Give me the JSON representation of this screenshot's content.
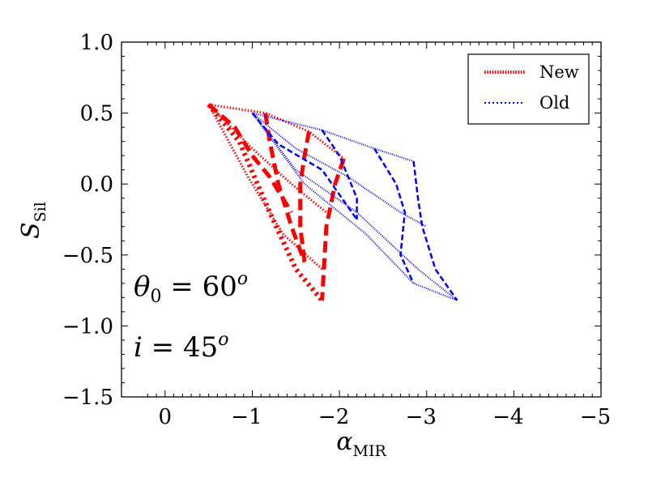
{
  "chart_data": {
    "type": "line",
    "xlabel": {
      "main": "α",
      "sub": "MIR"
    },
    "ylabel": {
      "main": "S",
      "sub": "Sil"
    },
    "xlim": [
      0.5,
      -5
    ],
    "ylim": [
      -1.5,
      1.0
    ],
    "x_ticks": [
      0,
      -1,
      -2,
      -3,
      -4,
      -5
    ],
    "x_tick_labels": [
      "0",
      "−1",
      "−2",
      "−3",
      "−4",
      "−5"
    ],
    "y_ticks": [
      1.0,
      0.5,
      0.0,
      -0.5,
      -1.0,
      -1.5
    ],
    "y_tick_labels": [
      "1.0",
      "0.5",
      "0.0",
      "−0.5",
      "−1.0",
      "−1.5"
    ],
    "legend_position": "top-right",
    "legend": [
      {
        "label": "New",
        "color": "#ff0000",
        "style": "dotted"
      },
      {
        "label": "Old",
        "color": "#0000ff",
        "style": "dotted"
      }
    ],
    "annotations": [
      {
        "lhs": "θ",
        "sub": "0",
        "op": " = 60",
        "sup": "o"
      },
      {
        "lhs": "i",
        "sub": "",
        "op": " = 45",
        "sup": "o"
      }
    ],
    "series": [
      {
        "group": "New",
        "color": "#ff0000",
        "style": "dotted",
        "width": 3,
        "points": [
          [
            -0.5,
            0.56
          ],
          [
            -1.15,
            0.5
          ],
          [
            -1.65,
            0.37
          ],
          [
            -2.05,
            0.18
          ]
        ]
      },
      {
        "group": "New",
        "color": "#ff0000",
        "style": "dotted",
        "width": 3,
        "points": [
          [
            -0.5,
            0.56
          ],
          [
            -1.0,
            0.25
          ],
          [
            -1.45,
            0.0
          ],
          [
            -1.85,
            -0.2
          ]
        ]
      },
      {
        "group": "New",
        "color": "#ff0000",
        "style": "dotted",
        "width": 3,
        "points": [
          [
            -0.5,
            0.56
          ],
          [
            -0.95,
            0.05
          ],
          [
            -1.35,
            -0.35
          ],
          [
            -1.8,
            -0.6
          ]
        ]
      },
      {
        "group": "New",
        "color": "#ff0000",
        "style": "dotted",
        "width": 6,
        "points": [
          [
            -0.5,
            0.56
          ],
          [
            -0.85,
            0.3
          ],
          [
            -1.2,
            -0.2
          ],
          [
            -1.5,
            -0.6
          ],
          [
            -1.8,
            -0.82
          ]
        ]
      },
      {
        "group": "New",
        "color": "#ff0000",
        "style": "dashed",
        "width": 5,
        "points": [
          [
            -0.5,
            0.56
          ],
          [
            -0.8,
            0.4
          ],
          [
            -1.0,
            0.2
          ],
          [
            -1.2,
            0.05
          ],
          [
            -1.45,
            -0.2
          ]
        ]
      },
      {
        "group": "New",
        "color": "#ff0000",
        "style": "dashed",
        "width": 5,
        "points": [
          [
            -1.15,
            0.5
          ],
          [
            -1.2,
            0.3
          ],
          [
            -1.3,
            0.0
          ],
          [
            -1.45,
            -0.3
          ],
          [
            -1.6,
            -0.55
          ]
        ]
      },
      {
        "group": "New",
        "color": "#ff0000",
        "style": "dashed",
        "width": 5,
        "points": [
          [
            -1.65,
            0.37
          ],
          [
            -1.6,
            0.2
          ],
          [
            -1.55,
            0.0
          ],
          [
            -1.55,
            -0.3
          ],
          [
            -1.6,
            -0.55
          ]
        ]
      },
      {
        "group": "New",
        "color": "#ff0000",
        "style": "dashed",
        "width": 5,
        "points": [
          [
            -2.05,
            0.18
          ],
          [
            -1.95,
            0.0
          ],
          [
            -1.85,
            -0.3
          ],
          [
            -1.8,
            -0.82
          ]
        ]
      },
      {
        "group": "Old",
        "color": "#0000ff",
        "style": "dotted",
        "width": 2,
        "points": [
          [
            -1.0,
            0.5
          ],
          [
            -1.8,
            0.38
          ],
          [
            -2.4,
            0.25
          ],
          [
            -2.85,
            0.16
          ]
        ]
      },
      {
        "group": "Old",
        "color": "#0000ff",
        "style": "dotted",
        "width": 2,
        "points": [
          [
            -1.0,
            0.5
          ],
          [
            -1.5,
            0.25
          ],
          [
            -2.1,
            0.05
          ],
          [
            -2.7,
            -0.2
          ],
          [
            -3.0,
            -0.3
          ]
        ]
      },
      {
        "group": "Old",
        "color": "#0000ff",
        "style": "dotted",
        "width": 2,
        "points": [
          [
            -1.0,
            0.5
          ],
          [
            -1.5,
            0.1
          ],
          [
            -2.2,
            -0.2
          ],
          [
            -2.9,
            -0.6
          ],
          [
            -3.35,
            -0.82
          ]
        ]
      },
      {
        "group": "Old",
        "color": "#0000ff",
        "style": "dotted",
        "width": 2,
        "points": [
          [
            -1.0,
            0.5
          ],
          [
            -1.6,
            0.0
          ],
          [
            -2.3,
            -0.35
          ],
          [
            -2.85,
            -0.7
          ],
          [
            -3.35,
            -0.82
          ]
        ]
      },
      {
        "group": "Old",
        "color": "#0000ff",
        "style": "dashed",
        "width": 2.5,
        "points": [
          [
            -1.0,
            0.5
          ],
          [
            -1.3,
            0.28
          ],
          [
            -1.8,
            0.1
          ],
          [
            -2.2,
            -0.25
          ]
        ]
      },
      {
        "group": "Old",
        "color": "#0000ff",
        "style": "dashed",
        "width": 2.5,
        "points": [
          [
            -1.8,
            0.38
          ],
          [
            -2.0,
            0.2
          ],
          [
            -2.2,
            -0.1
          ],
          [
            -2.2,
            -0.25
          ]
        ]
      },
      {
        "group": "Old",
        "color": "#0000ff",
        "style": "dashed",
        "width": 2.5,
        "points": [
          [
            -2.4,
            0.25
          ],
          [
            -2.65,
            0.0
          ],
          [
            -2.75,
            -0.2
          ],
          [
            -2.7,
            -0.5
          ],
          [
            -2.85,
            -0.7
          ]
        ]
      },
      {
        "group": "Old",
        "color": "#0000ff",
        "style": "dashed",
        "width": 2.5,
        "points": [
          [
            -2.85,
            0.16
          ],
          [
            -2.9,
            -0.1
          ],
          [
            -2.95,
            -0.3
          ],
          [
            -3.1,
            -0.6
          ],
          [
            -3.35,
            -0.82
          ]
        ]
      }
    ]
  }
}
